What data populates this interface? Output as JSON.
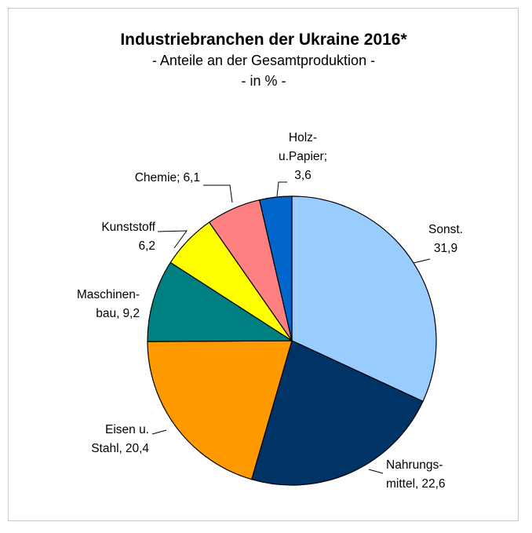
{
  "chart_data": {
    "type": "pie",
    "title": "Industriebranchen der Ukraine 2016*",
    "subtitle": [
      "- Anteile an der Gesamtproduktion -",
      "- in % -"
    ],
    "categories": [
      [
        "Sonst."
      ],
      [
        "Nahrungs-",
        "mittel,"
      ],
      [
        "Eisen u.",
        "Stahl,"
      ],
      [
        "Maschinen-",
        "bau,"
      ],
      [
        "Kunststoff"
      ],
      [
        "Chemie;"
      ],
      [
        "Holz-",
        "u.Papier;"
      ]
    ],
    "values": [
      31.9,
      22.6,
      20.4,
      9.2,
      6.2,
      6.1,
      3.6
    ],
    "value_labels": [
      "31,9",
      "22,6",
      "20,4",
      "9,2",
      "6,2",
      "6,1",
      "3,6"
    ],
    "colors": [
      "#99ccff",
      "#003366",
      "#ff9900",
      "#008080",
      "#ffff00",
      "#ff8080",
      "#0066cc"
    ]
  }
}
